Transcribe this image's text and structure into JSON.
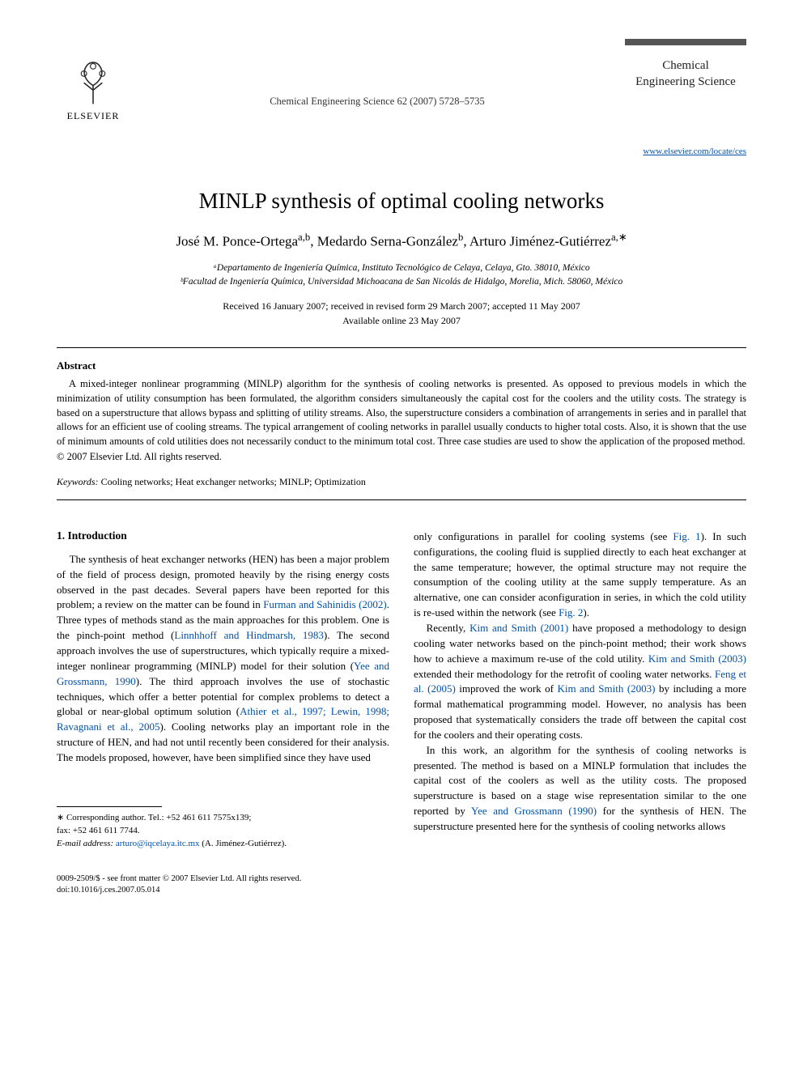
{
  "header": {
    "publisher_name": "ELSEVIER",
    "citation": "Chemical Engineering Science 62 (2007) 5728–5735",
    "journal_name_line1": "Chemical",
    "journal_name_line2": "Engineering Science",
    "journal_url": "www.elsevier.com/locate/ces",
    "journal_bar_color": "#555555",
    "publisher_tree_color": "#e67a1a"
  },
  "article": {
    "title": "MINLP synthesis of optimal cooling networks",
    "authors_html": "José M. Ponce-Ortega<sup>a,b</sup>, Medardo Serna-González<sup>b</sup>, Arturo Jiménez-Gutiérrez<sup>a,∗</sup>",
    "affiliations": [
      "ᵃDepartamento de Ingeniería Química, Instituto Tecnológico de Celaya, Celaya, Gto. 38010, México",
      "ᵇFacultad de Ingeniería Química, Universidad Michoacana de San Nicolás de Hidalgo, Morelia, Mich. 58060, México"
    ],
    "dates_line1": "Received 16 January 2007; received in revised form 29 March 2007; accepted 11 May 2007",
    "dates_line2": "Available online 23 May 2007"
  },
  "abstract": {
    "heading": "Abstract",
    "text": "A mixed-integer nonlinear programming (MINLP) algorithm for the synthesis of cooling networks is presented. As opposed to previous models in which the minimization of utility consumption has been formulated, the algorithm considers simultaneously the capital cost for the coolers and the utility costs. The strategy is based on a superstructure that allows bypass and splitting of utility streams. Also, the superstructure considers a combination of arrangements in series and in parallel that allows for an efficient use of cooling streams. The typical arrangement of cooling networks in parallel usually conducts to higher total costs. Also, it is shown that the use of minimum amounts of cold utilities does not necessarily conduct to the minimum total cost. Three case studies are used to show the application of the proposed method.",
    "copyright": "© 2007 Elsevier Ltd. All rights reserved."
  },
  "keywords": {
    "label": "Keywords:",
    "list": "Cooling networks; Heat exchanger networks; MINLP; Optimization"
  },
  "body": {
    "section1_heading": "1. Introduction",
    "col1_p1_a": "The synthesis of heat exchanger networks (HEN) has been a major problem of the field of process design, promoted heavily by the rising energy costs observed in the past decades. Several papers have been reported for this problem; a review on the matter can be found in ",
    "cite1": "Furman and Sahinidis (2002)",
    "col1_p1_b": ". Three types of methods stand as the main approaches for this problem. One is the pinch-point method (",
    "cite2": "Linnhhoff and Hindmarsh, 1983",
    "col1_p1_c": "). The second approach involves the use of superstructures, which typically require a mixed-integer nonlinear programming (MINLP) model for their solution (",
    "cite3": "Yee and Grossmann, 1990",
    "col1_p1_d": "). The third approach involves the use of stochastic techniques, which offer a better potential for complex problems to detect a global or near-global optimum solution (",
    "cite4": "Athier et al., 1997; Lewin, 1998; Ravagnani et al., 2005",
    "col1_p1_e": "). Cooling networks play an important role in the structure of HEN, and had not until recently been considered for their analysis. The models proposed, however, have been simplified since they have used",
    "col2_p1_a": "only configurations in parallel for cooling systems (see ",
    "cite5": "Fig. 1",
    "col2_p1_b": "). In such configurations, the cooling fluid is supplied directly to each heat exchanger at the same temperature; however, the optimal structure may not require the consumption of the cooling utility at the same supply temperature. As an alternative, one can consider aconfiguration in series, in which the cold utility is re-used within the network (see ",
    "cite6": "Fig. 2",
    "col2_p1_c": ").",
    "col2_p2_a": "Recently, ",
    "cite7": "Kim and Smith (2001)",
    "col2_p2_b": " have proposed a methodology to design cooling water networks based on the pinch-point method; their work shows how to achieve a maximum re-use of the cold utility. ",
    "cite8": "Kim and Smith (2003)",
    "col2_p2_c": " extended their methodology for the retrofit of cooling water networks. ",
    "cite9": "Feng et al. (2005)",
    "col2_p2_d": " improved the work of ",
    "cite10": "Kim and Smith (2003)",
    "col2_p2_e": " by including a more formal mathematical programming model. However, no analysis has been proposed that systematically considers the trade off between the capital cost for the coolers and their operating costs.",
    "col2_p3_a": "In this work, an algorithm for the synthesis of cooling networks is presented. The method is based on a MINLP formulation that includes the capital cost of the coolers as well as the utility costs. The proposed superstructure is based on a stage wise representation similar to the one reported by ",
    "cite11": "Yee and Grossmann (1990)",
    "col2_p3_b": " for the synthesis of HEN. The superstructure presented here for the synthesis of cooling networks allows"
  },
  "footnotes": {
    "corr_label": "∗ Corresponding author. Tel.: +52 461 611 7575x139;",
    "fax": "fax: +52 461 611 7744.",
    "email_label": "E-mail address:",
    "email": "arturo@iqcelaya.itc.mx",
    "email_person": "(A. Jiménez-Gutiérrez)."
  },
  "footer": {
    "issn": "0009-2509/$ - see front matter © 2007 Elsevier Ltd. All rights reserved.",
    "doi": "doi:10.1016/j.ces.2007.05.014"
  },
  "colors": {
    "text": "#000000",
    "link": "#0050aa",
    "background": "#ffffff"
  }
}
